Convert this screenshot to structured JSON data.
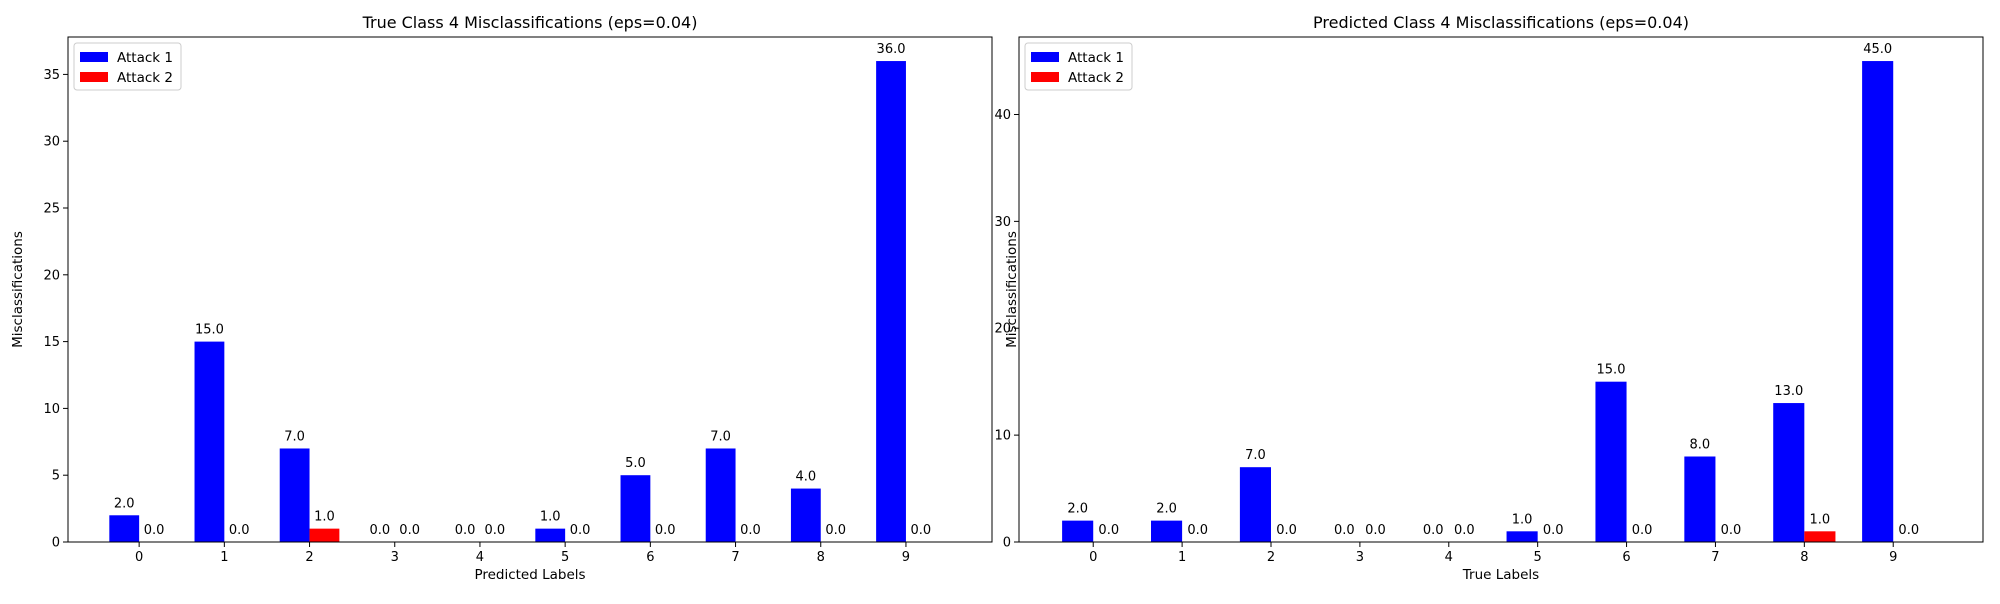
{
  "chart_data": [
    {
      "type": "bar",
      "title": "True Class 4 Misclassifications (eps=0.04)",
      "xlabel": "Predicted Labels",
      "ylabel": "Misclassifications",
      "categories": [
        "0",
        "1",
        "2",
        "3",
        "4",
        "5",
        "6",
        "7",
        "8",
        "9"
      ],
      "series": [
        {
          "name": "Attack 1",
          "color": "#0000ff",
          "values": [
            2.0,
            15.0,
            7.0,
            0.0,
            0.0,
            1.0,
            5.0,
            7.0,
            4.0,
            36.0
          ]
        },
        {
          "name": "Attack 2",
          "color": "#ff0000",
          "values": [
            0.0,
            0.0,
            1.0,
            0.0,
            0.0,
            0.0,
            0.0,
            0.0,
            0.0,
            0.0
          ]
        }
      ],
      "value_labels": {
        "Attack 1": [
          "2.0",
          "15.0",
          "7.0",
          "0.0",
          "0.0",
          "1.0",
          "5.0",
          "7.0",
          "4.0",
          "36.0"
        ],
        "Attack 2": [
          "0.0",
          "0.0",
          "1.0",
          "0.0",
          "0.0",
          "0.0",
          "0.0",
          "0.0",
          "0.0",
          "0.0"
        ]
      },
      "ylim": [
        0,
        37.8
      ],
      "yticks": [
        0,
        5,
        10,
        15,
        20,
        25,
        30,
        35
      ],
      "legend": "top-left",
      "grid": false
    },
    {
      "type": "bar",
      "title": "Predicted Class 4 Misclassifications (eps=0.04)",
      "xlabel": "True Labels",
      "ylabel": "Misclassifications",
      "categories": [
        "0",
        "1",
        "2",
        "3",
        "4",
        "5",
        "6",
        "7",
        "8",
        "9"
      ],
      "series": [
        {
          "name": "Attack 1",
          "color": "#0000ff",
          "values": [
            2.0,
            2.0,
            7.0,
            0.0,
            0.0,
            1.0,
            15.0,
            8.0,
            13.0,
            45.0
          ]
        },
        {
          "name": "Attack 2",
          "color": "#ff0000",
          "values": [
            0.0,
            0.0,
            0.0,
            0.0,
            0.0,
            0.0,
            0.0,
            0.0,
            1.0,
            0.0
          ]
        }
      ],
      "value_labels": {
        "Attack 1": [
          "2.0",
          "2.0",
          "7.0",
          "0.0",
          "0.0",
          "1.0",
          "15.0",
          "8.0",
          "13.0",
          "45.0"
        ],
        "Attack 2": [
          "0.0",
          "0.0",
          "0.0",
          "0.0",
          "0.0",
          "0.0",
          "0.0",
          "0.0",
          "1.0",
          "0.0"
        ]
      },
      "ylim": [
        0,
        47.25
      ],
      "yticks": [
        0,
        10,
        20,
        30,
        40
      ],
      "legend": "top-left",
      "grid": false
    }
  ]
}
